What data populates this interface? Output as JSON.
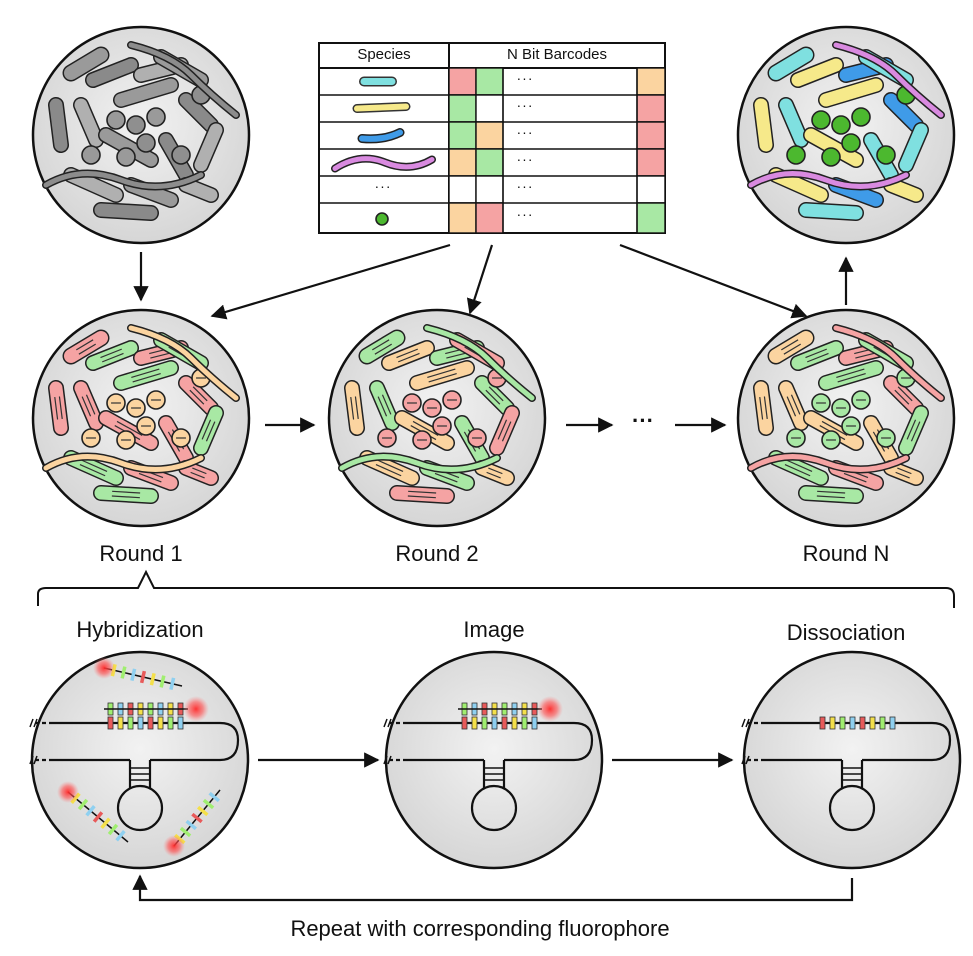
{
  "table": {
    "header_species": "Species",
    "header_barcodes": "N Bit Barcodes",
    "ellipsis": "···",
    "rows": [
      {
        "species": "cyan-rod",
        "bits": [
          "red",
          "green",
          "orange"
        ]
      },
      {
        "species": "yellow-rod",
        "bits": [
          "green",
          "white",
          "red"
        ]
      },
      {
        "species": "blue-rod",
        "bits": [
          "green",
          "orange",
          "red"
        ]
      },
      {
        "species": "magenta-filament",
        "bits": [
          "orange",
          "green",
          "red"
        ]
      },
      {
        "species": "ellipsis",
        "bits": [
          "white",
          "white",
          "white"
        ]
      },
      {
        "species": "green-coccus",
        "bits": [
          "orange",
          "red",
          "green"
        ]
      }
    ]
  },
  "rounds": {
    "round1": "Round 1",
    "round2": "Round 2",
    "roundN": "Round N",
    "between": "···"
  },
  "steps": {
    "hybridization": "Hybridization",
    "image": "Image",
    "dissociation": "Dissociation"
  },
  "repeat_label": "Repeat with corresponding fluorophore",
  "colors": {
    "red": "#f5a3a3",
    "green": "#a8e8a4",
    "orange": "#fbd4a0",
    "cyan": "#7fe0e0",
    "yellow": "#f6e98a",
    "blue": "#3f9be8",
    "magenta": "#d98ae0",
    "coccus": "#4cb82f",
    "gray": "#9a9a9a",
    "circle_fill": "#e6e6e6"
  }
}
